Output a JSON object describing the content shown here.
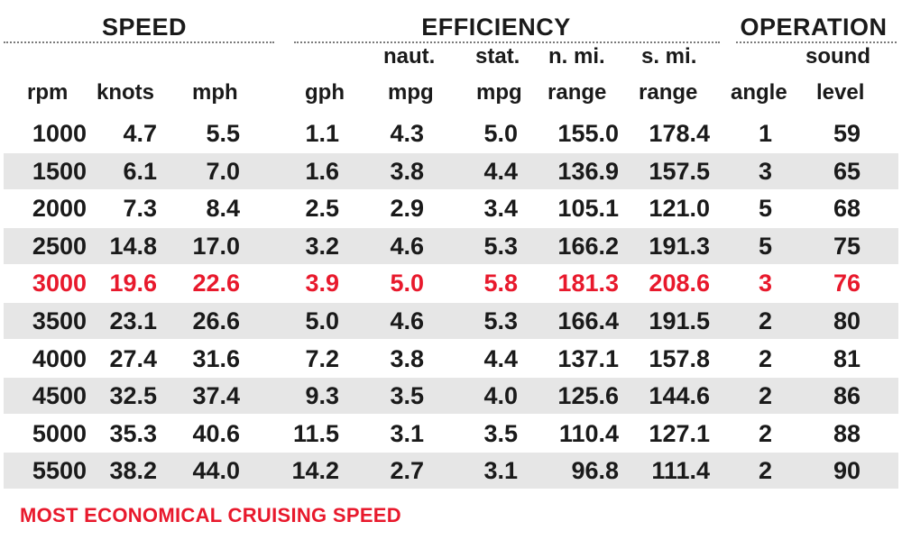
{
  "groups": {
    "speed": "SPEED",
    "efficiency": "EFFICIENCY",
    "operation": "OPERATION"
  },
  "headers": {
    "rpm": "rpm",
    "knots": "knots",
    "mph": "mph",
    "gph": "gph",
    "naut_mpg_top": "naut.",
    "naut_mpg_bottom": "mpg",
    "stat_mpg_top": "stat.",
    "stat_mpg_bottom": "mpg",
    "nmi_range_top": "n. mi.",
    "nmi_range_bottom": "range",
    "smi_range_top": "s. mi.",
    "smi_range_bottom": "range",
    "angle": "angle",
    "sound_top": "sound",
    "sound_bottom": "level"
  },
  "rows": [
    [
      "1000",
      "4.7",
      "5.5",
      "1.1",
      "4.3",
      "5.0",
      "155.0",
      "178.4",
      "1",
      "59"
    ],
    [
      "1500",
      "6.1",
      "7.0",
      "1.6",
      "3.8",
      "4.4",
      "136.9",
      "157.5",
      "3",
      "65"
    ],
    [
      "2000",
      "7.3",
      "8.4",
      "2.5",
      "2.9",
      "3.4",
      "105.1",
      "121.0",
      "5",
      "68"
    ],
    [
      "2500",
      "14.8",
      "17.0",
      "3.2",
      "4.6",
      "5.3",
      "166.2",
      "191.3",
      "5",
      "75"
    ],
    [
      "3000",
      "19.6",
      "22.6",
      "3.9",
      "5.0",
      "5.8",
      "181.3",
      "208.6",
      "3",
      "76"
    ],
    [
      "3500",
      "23.1",
      "26.6",
      "5.0",
      "4.6",
      "5.3",
      "166.4",
      "191.5",
      "2",
      "80"
    ],
    [
      "4000",
      "27.4",
      "31.6",
      "7.2",
      "3.8",
      "4.4",
      "137.1",
      "157.8",
      "2",
      "81"
    ],
    [
      "4500",
      "32.5",
      "37.4",
      "9.3",
      "3.5",
      "4.0",
      "125.6",
      "144.6",
      "2",
      "86"
    ],
    [
      "5000",
      "35.3",
      "40.6",
      "11.5",
      "3.1",
      "3.5",
      "110.4",
      "127.1",
      "2",
      "88"
    ],
    [
      "5500",
      "38.2",
      "44.0",
      "14.2",
      "2.7",
      "3.1",
      "96.8",
      "111.4",
      "2",
      "90"
    ]
  ],
  "highlight_row": 4,
  "highlight_color": "#e8192c",
  "footnote": "MOST ECONOMICAL CRUISING SPEED"
}
